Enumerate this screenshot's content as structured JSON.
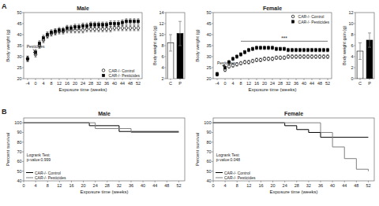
{
  "chart_data": [
    {
      "type": "scatter",
      "panel_label": "A",
      "title": "Male",
      "xlabel": "Exposure time (weeks)",
      "ylabel": "Body weight (g)",
      "x": [
        -4,
        0,
        2,
        4,
        6,
        8,
        10,
        12,
        14,
        16,
        18,
        20,
        22,
        24,
        26,
        28,
        30,
        32,
        34,
        36,
        38,
        40,
        42,
        44,
        46,
        48,
        50,
        52
      ],
      "series": [
        {
          "name": "CAR-/- Control",
          "color": "black",
          "marker": "open-circle",
          "values": [
            29,
            31,
            35,
            37.5,
            39.5,
            40.5,
            41,
            41.5,
            41.5,
            42,
            42,
            42,
            42,
            42,
            42.5,
            42.5,
            42.5,
            42.5,
            42.5,
            42.5,
            42.5,
            43,
            43,
            43,
            43,
            43,
            43,
            43
          ],
          "errors": [
            1.2,
            1.2,
            1.2,
            1.2,
            1.2,
            1.2,
            1.2,
            1.2,
            1.2,
            1.2,
            1.2,
            1.2,
            1.2,
            1.2,
            1.2,
            1.2,
            1.2,
            1.2,
            1.2,
            1.2,
            1.2,
            1.2,
            1.2,
            1.2,
            1.2,
            1.2,
            1.2,
            1.2
          ]
        },
        {
          "name": "CAR-/- Pesticides",
          "color": "black",
          "marker": "square",
          "values": [
            29,
            32,
            36,
            38.5,
            40,
            41,
            41.5,
            42,
            42,
            43,
            43,
            43.5,
            43.5,
            44,
            44,
            44.5,
            44.5,
            44.5,
            44.5,
            44.5,
            45,
            45,
            45,
            45.5,
            46,
            46,
            46,
            46
          ],
          "errors": [
            1.2,
            1.2,
            1.2,
            1.2,
            1.2,
            1.2,
            1.2,
            1.2,
            1.2,
            1.2,
            1.2,
            1.2,
            1.2,
            1.2,
            1.2,
            1.2,
            1.2,
            1.2,
            1.2,
            1.2,
            1.2,
            1.2,
            1.2,
            1.2,
            1.2,
            1.2,
            1.2,
            1.2
          ]
        }
      ],
      "xlim": [
        -6,
        54
      ],
      "xticks": [
        -4,
        0,
        4,
        8,
        12,
        16,
        20,
        24,
        28,
        32,
        36,
        40,
        44,
        48,
        52
      ],
      "ylim": [
        20,
        50
      ],
      "yticks": [
        20,
        25,
        30,
        35,
        40,
        45,
        50
      ],
      "legend": "lower right",
      "annotations": [
        {
          "text": "Pesticides",
          "x": -4.5,
          "y": 34.5,
          "arrow_x": 0,
          "arrow_y": 31
        }
      ]
    },
    {
      "type": "bar",
      "ylabel": "Body weight gain (g)",
      "categories": [
        "C",
        "P"
      ],
      "values": [
        8.5,
        10.2
      ],
      "errors": [
        1.5,
        2.2
      ],
      "colors": [
        "white",
        "black"
      ],
      "ylim": [
        2,
        14
      ],
      "yticks": [
        2,
        4,
        6,
        8,
        10,
        12,
        14
      ]
    },
    {
      "type": "scatter",
      "title": "Female",
      "xlabel": "Exposure time (weeks)",
      "ylabel": "Body weight (g)",
      "x": [
        -4,
        0,
        2,
        4,
        6,
        8,
        10,
        12,
        14,
        16,
        18,
        20,
        22,
        24,
        26,
        28,
        30,
        32,
        34,
        36,
        38,
        40,
        42,
        44,
        46,
        48,
        50,
        52
      ],
      "series": [
        {
          "name": "CAR-/- Control",
          "color": "black",
          "marker": "open-circle",
          "values": [
            22,
            24,
            25.5,
            26,
            26.5,
            27,
            27.5,
            27.5,
            28,
            28.5,
            28.5,
            29,
            29,
            29,
            29.5,
            29.5,
            29.5,
            30,
            30,
            30,
            30,
            30,
            30,
            30,
            30,
            30,
            30,
            30
          ],
          "errors": [
            0.8,
            0.8,
            0.8,
            0.8,
            0.8,
            0.8,
            0.8,
            0.8,
            0.8,
            0.8,
            0.8,
            0.8,
            0.8,
            0.8,
            0.8,
            0.8,
            0.8,
            0.8,
            0.8,
            0.8,
            0.8,
            0.8,
            0.8,
            0.8,
            0.8,
            0.8,
            0.8,
            0.8
          ]
        },
        {
          "name": "CAR-/- Pesticides",
          "color": "black",
          "marker": "square",
          "values": [
            22,
            25,
            27.5,
            29,
            30,
            31,
            32,
            33,
            33.5,
            34,
            34,
            34,
            34,
            34,
            33.5,
            33.5,
            33.5,
            33,
            33,
            33,
            33,
            33,
            33,
            33,
            33,
            33,
            33,
            33
          ],
          "errors": [
            0.8,
            0.8,
            0.8,
            0.8,
            0.8,
            0.8,
            0.8,
            0.8,
            0.8,
            0.8,
            0.8,
            0.8,
            0.8,
            0.8,
            0.8,
            0.8,
            0.8,
            0.8,
            0.8,
            0.8,
            0.8,
            0.8,
            0.8,
            0.8,
            0.8,
            0.8,
            0.8,
            0.8
          ]
        }
      ],
      "xlim": [
        -6,
        54
      ],
      "xticks": [
        -4,
        0,
        4,
        8,
        12,
        16,
        20,
        24,
        28,
        32,
        36,
        40,
        44,
        48,
        52
      ],
      "ylim": [
        20,
        50
      ],
      "yticks": [
        20,
        25,
        30,
        35,
        40,
        45,
        50
      ],
      "legend": "upper right",
      "annotations": [
        {
          "text": "***",
          "x": 30,
          "y": 37.5,
          "line_x": [
            8,
            52
          ],
          "line_y": 37
        },
        {
          "text": "Pesticides",
          "x": -4,
          "y": 27,
          "arrow_x": 0,
          "arrow_y": 25
        }
      ]
    },
    {
      "type": "bar",
      "ylabel": "Body weight gain (g)",
      "categories": [
        "C",
        "P"
      ],
      "values": [
        5.0,
        7.0
      ],
      "errors": [
        1.5,
        1.3
      ],
      "colors": [
        "white",
        "black"
      ],
      "ylim": [
        0,
        12
      ],
      "yticks": [
        0,
        2,
        4,
        6,
        8,
        10,
        12
      ]
    },
    {
      "type": "line",
      "panel_label": "B",
      "title": "Male",
      "xlabel": "Exposure time (weeks)",
      "ylabel": "Percent survival",
      "series": [
        {
          "name": "CAR-/- Control",
          "color": "black",
          "x": [
            0,
            22,
            22,
            32,
            32,
            52
          ],
          "values": [
            100,
            100,
            97,
            97,
            91,
            91
          ]
        },
        {
          "name": "CAR-/- Pesticides",
          "color": "gray",
          "x": [
            0,
            24,
            24,
            36,
            36,
            52
          ],
          "values": [
            100,
            100,
            94,
            94,
            90,
            90
          ]
        }
      ],
      "xlim": [
        0,
        54
      ],
      "xticks": [
        0,
        4,
        8,
        12,
        16,
        20,
        24,
        28,
        32,
        36,
        40,
        44,
        48,
        52
      ],
      "ylim": [
        40,
        105
      ],
      "yticks": [
        40,
        50,
        60,
        70,
        80,
        90,
        100
      ],
      "legend": "lower left",
      "annotations": [
        {
          "text": "Logrank Test:\np-value:0.999",
          "x": 1,
          "y": 69
        }
      ]
    },
    {
      "type": "line",
      "title": "Female",
      "xlabel": "Exposure time (weeks)",
      "ylabel": "Percent survival",
      "series": [
        {
          "name": "CAR-/- Control",
          "color": "black",
          "x": [
            0,
            24,
            24,
            28,
            28,
            32,
            32,
            36,
            36,
            52
          ],
          "values": [
            100,
            100,
            97,
            97,
            93,
            93,
            90,
            90,
            85,
            85
          ]
        },
        {
          "name": "CAR-/- Pesticides",
          "color": "gray",
          "x": [
            0,
            36,
            36,
            40,
            40,
            44,
            44,
            48,
            48,
            52,
            52
          ],
          "values": [
            100,
            100,
            90,
            90,
            75,
            75,
            63,
            63,
            52,
            52,
            50
          ]
        }
      ],
      "xlim": [
        0,
        54
      ],
      "xticks": [
        0,
        4,
        8,
        12,
        16,
        20,
        24,
        28,
        32,
        36,
        40,
        44,
        48,
        52
      ],
      "ylim": [
        40,
        105
      ],
      "yticks": [
        40,
        50,
        60,
        70,
        80,
        90,
        100
      ],
      "legend": "lower left",
      "annotations": [
        {
          "text": "Logrank Test:\np-value:0.048",
          "x": 1,
          "y": 69
        }
      ]
    }
  ]
}
